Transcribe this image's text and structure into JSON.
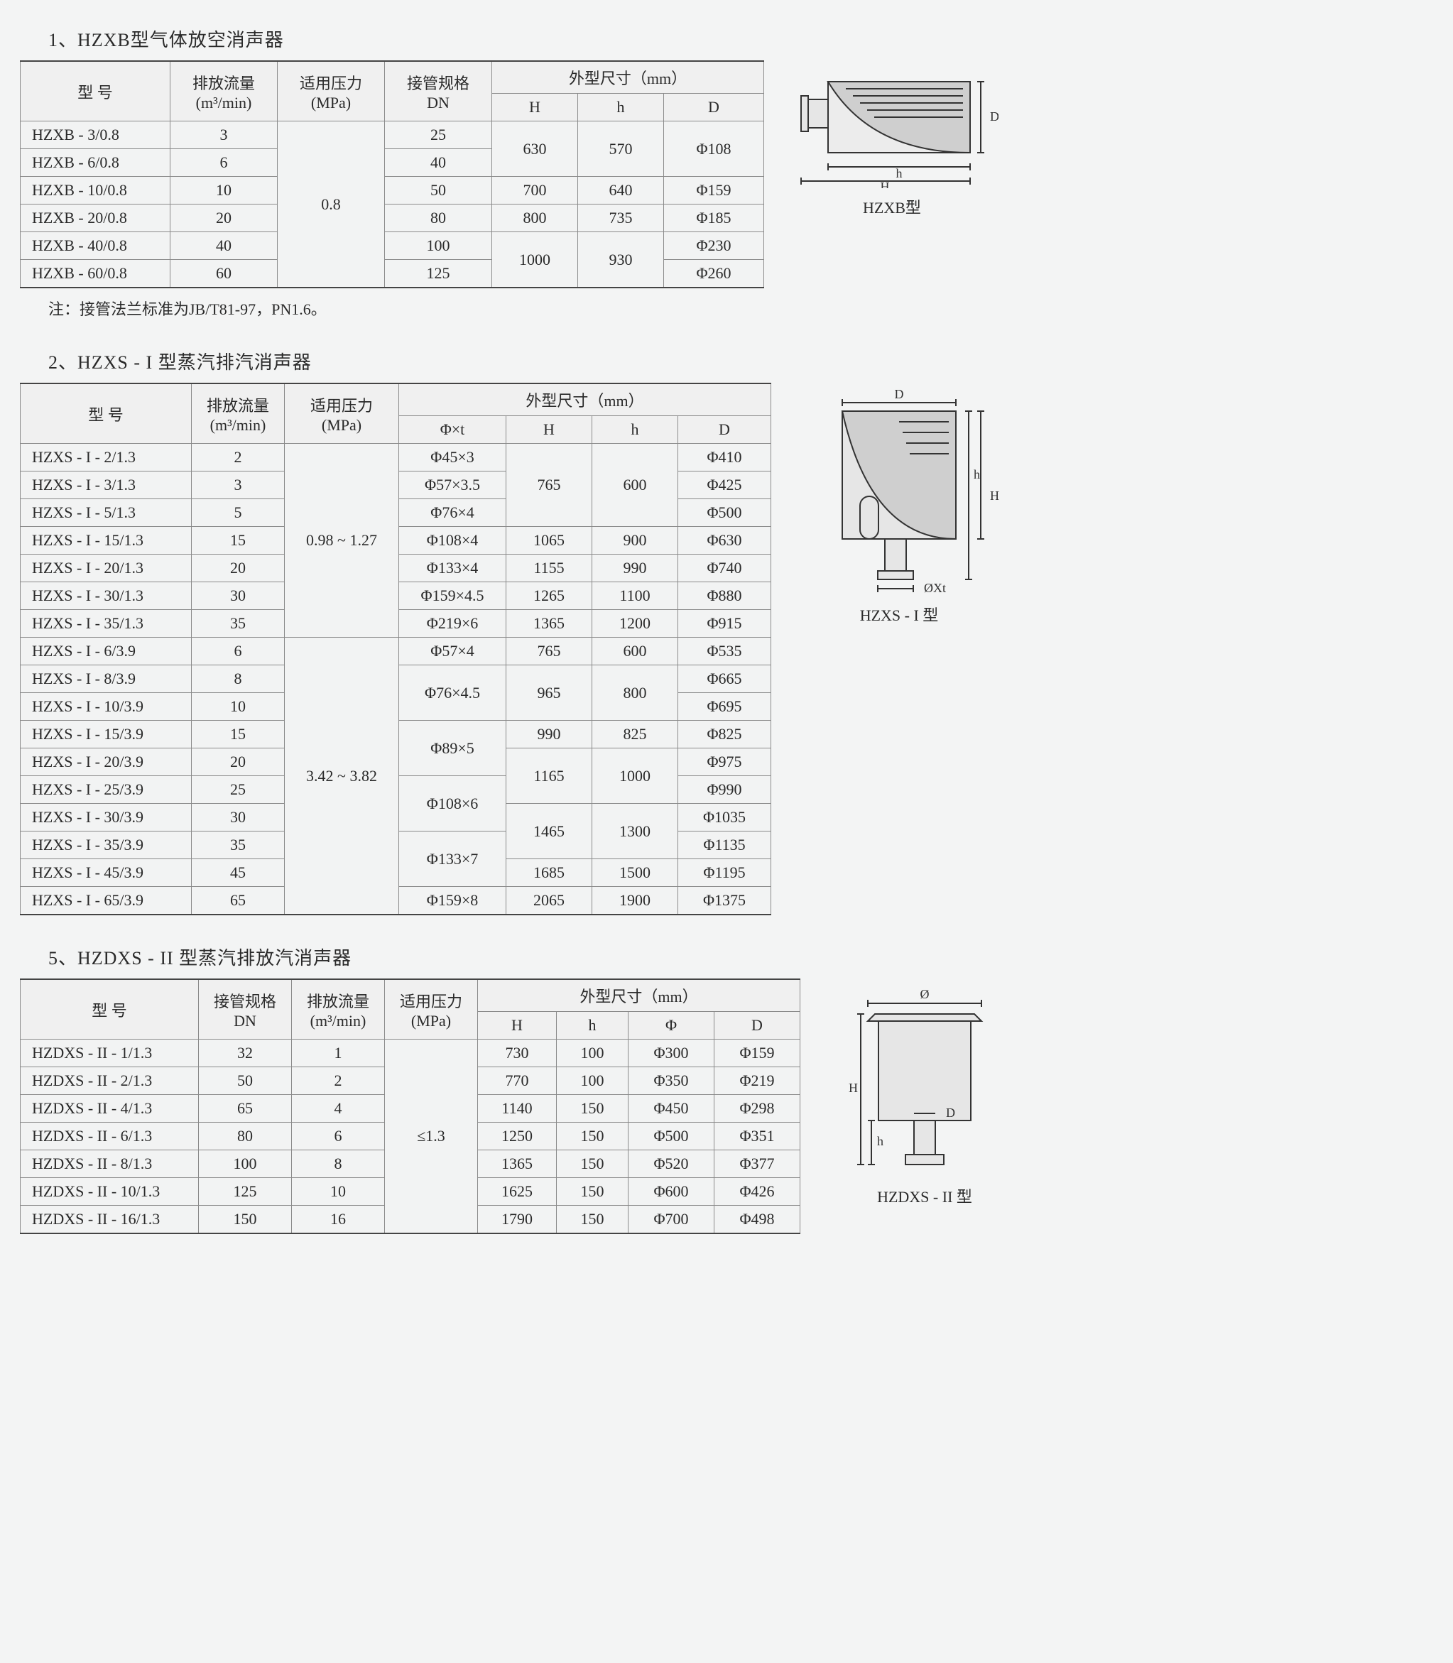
{
  "colors": {
    "page_bg": "#f3f4f4",
    "text": "#2a2a2a",
    "grid": "#8a8a8a",
    "table_border_heavy": "#444444",
    "diagram_stroke": "#333333",
    "diagram_fill": "#e6e6e6",
    "diagram_dark": "#cfcfcf"
  },
  "section1": {
    "title": "1、HZXB型气体放空消声器",
    "note": "注：接管法兰标准为JB/T81-97，PN1.6。",
    "diagram_label": "HZXB型",
    "diagram_dims": [
      "H",
      "h",
      "D"
    ],
    "columns": {
      "model": "型  号",
      "flow": "排放流量\n(m³/min)",
      "pressure": "适用压力\n(MPa)",
      "dn": "接管规格\nDN",
      "dims_group": "外型尺寸（mm）",
      "H": "H",
      "h": "h",
      "D": "D"
    },
    "pressure_common": "0.8",
    "rows": [
      {
        "model": "HZXB - 3/0.8",
        "flow": "3",
        "dn": "25",
        "H": "630",
        "h": "570",
        "D": "Φ108"
      },
      {
        "model": "HZXB - 6/0.8",
        "flow": "6",
        "dn": "40",
        "H": "",
        "h": "",
        "D": ""
      },
      {
        "model": "HZXB - 10/0.8",
        "flow": "10",
        "dn": "50",
        "H": "700",
        "h": "640",
        "D": "Φ159"
      },
      {
        "model": "HZXB - 20/0.8",
        "flow": "20",
        "dn": "80",
        "H": "800",
        "h": "735",
        "D": "Φ185"
      },
      {
        "model": "HZXB - 40/0.8",
        "flow": "40",
        "dn": "100",
        "H": "1000",
        "h": "930",
        "D": "Φ230"
      },
      {
        "model": "HZXB - 60/0.8",
        "flow": "60",
        "dn": "125",
        "H": "",
        "h": "",
        "D": "Φ260"
      }
    ],
    "H_spans": [
      2,
      0,
      1,
      1,
      2,
      0
    ],
    "h_spans": [
      2,
      0,
      1,
      1,
      2,
      0
    ]
  },
  "section2": {
    "title": "2、HZXS - I 型蒸汽排汽消声器",
    "diagram_label": "HZXS - I 型",
    "diagram_dims": [
      "H",
      "h",
      "D",
      "ØXt"
    ],
    "columns": {
      "model": "型  号",
      "flow": "排放流量\n(m³/min)",
      "pressure": "适用压力\n(MPa)",
      "dims_group": "外型尺寸（mm）",
      "phiXt": "Φ×t",
      "H": "H",
      "h": "h",
      "D": "D"
    },
    "pressure_groups": [
      {
        "value": "0.98 ~ 1.27",
        "span": 7
      },
      {
        "value": "3.42 ~ 3.82",
        "span": 10
      }
    ],
    "rows": [
      {
        "model": "HZXS - I - 2/1.3",
        "flow": "2",
        "phiXt": "Φ45×3",
        "H": "765",
        "h": "600",
        "D": "Φ410",
        "phi_span": 1,
        "H_span": 3,
        "h_span": 3
      },
      {
        "model": "HZXS - I - 3/1.3",
        "flow": "3",
        "phiXt": "Φ57×3.5",
        "H": "",
        "h": "",
        "D": "Φ425",
        "phi_span": 1,
        "H_span": 0,
        "h_span": 0
      },
      {
        "model": "HZXS - I - 5/1.3",
        "flow": "5",
        "phiXt": "Φ76×4",
        "H": "",
        "h": "",
        "D": "Φ500",
        "phi_span": 1,
        "H_span": 0,
        "h_span": 0
      },
      {
        "model": "HZXS - I - 15/1.3",
        "flow": "15",
        "phiXt": "Φ108×4",
        "H": "1065",
        "h": "900",
        "D": "Φ630",
        "phi_span": 1,
        "H_span": 1,
        "h_span": 1
      },
      {
        "model": "HZXS - I - 20/1.3",
        "flow": "20",
        "phiXt": "Φ133×4",
        "H": "1155",
        "h": "990",
        "D": "Φ740",
        "phi_span": 1,
        "H_span": 1,
        "h_span": 1
      },
      {
        "model": "HZXS - I - 30/1.3",
        "flow": "30",
        "phiXt": "Φ159×4.5",
        "H": "1265",
        "h": "1100",
        "D": "Φ880",
        "phi_span": 1,
        "H_span": 1,
        "h_span": 1
      },
      {
        "model": "HZXS - I - 35/1.3",
        "flow": "35",
        "phiXt": "Φ219×6",
        "H": "1365",
        "h": "1200",
        "D": "Φ915",
        "phi_span": 1,
        "H_span": 1,
        "h_span": 1
      },
      {
        "model": "HZXS - I - 6/3.9",
        "flow": "6",
        "phiXt": "Φ57×4",
        "H": "765",
        "h": "600",
        "D": "Φ535",
        "phi_span": 1,
        "H_span": 1,
        "h_span": 1
      },
      {
        "model": "HZXS - I - 8/3.9",
        "flow": "8",
        "phiXt": "Φ76×4.5",
        "H": "965",
        "h": "800",
        "D": "Φ665",
        "phi_span": 2,
        "H_span": 2,
        "h_span": 2
      },
      {
        "model": "HZXS - I - 10/3.9",
        "flow": "10",
        "phiXt": "",
        "H": "",
        "h": "",
        "D": "Φ695",
        "phi_span": 0,
        "H_span": 0,
        "h_span": 0
      },
      {
        "model": "HZXS - I - 15/3.9",
        "flow": "15",
        "phiXt": "Φ89×5",
        "H": "990",
        "h": "825",
        "D": "Φ825",
        "phi_span": 2,
        "H_span": 1,
        "h_span": 1
      },
      {
        "model": "HZXS - I - 20/3.9",
        "flow": "20",
        "phiXt": "",
        "H": "1165",
        "h": "1000",
        "D": "Φ975",
        "phi_span": 0,
        "H_span": 2,
        "h_span": 2
      },
      {
        "model": "HZXS - I - 25/3.9",
        "flow": "25",
        "phiXt": "Φ108×6",
        "H": "",
        "h": "",
        "D": "Φ990",
        "phi_span": 2,
        "H_span": 0,
        "h_span": 0
      },
      {
        "model": "HZXS - I - 30/3.9",
        "flow": "30",
        "phiXt": "",
        "H": "1465",
        "h": "1300",
        "D": "Φ1035",
        "phi_span": 0,
        "H_span": 2,
        "h_span": 2
      },
      {
        "model": "HZXS - I - 35/3.9",
        "flow": "35",
        "phiXt": "Φ133×7",
        "H": "",
        "h": "",
        "D": "Φ1135",
        "phi_span": 2,
        "H_span": 0,
        "h_span": 0
      },
      {
        "model": "HZXS - I - 45/3.9",
        "flow": "45",
        "phiXt": "",
        "H": "1685",
        "h": "1500",
        "D": "Φ1195",
        "phi_span": 0,
        "H_span": 1,
        "h_span": 1
      },
      {
        "model": "HZXS - I - 65/3.9",
        "flow": "65",
        "phiXt": "Φ159×8",
        "H": "2065",
        "h": "1900",
        "D": "Φ1375",
        "phi_span": 1,
        "H_span": 1,
        "h_span": 1
      }
    ]
  },
  "section5": {
    "title": "5、HZDXS - II 型蒸汽排放汽消声器",
    "diagram_label": "HZDXS - II 型",
    "diagram_dims": [
      "H",
      "h",
      "D",
      "Ø"
    ],
    "columns": {
      "model": "型  号",
      "dn": "接管规格\nDN",
      "flow": "排放流量\n(m³/min)",
      "pressure": "适用压力\n(MPa)",
      "dims_group": "外型尺寸（mm）",
      "H": "H",
      "h": "h",
      "Phi": "Φ",
      "D": "D"
    },
    "pressure_common": "≤1.3",
    "rows": [
      {
        "model": "HZDXS - II - 1/1.3",
        "dn": "32",
        "flow": "1",
        "H": "730",
        "h": "100",
        "Phi": "Φ300",
        "D": "Φ159"
      },
      {
        "model": "HZDXS - II - 2/1.3",
        "dn": "50",
        "flow": "2",
        "H": "770",
        "h": "100",
        "Phi": "Φ350",
        "D": "Φ219"
      },
      {
        "model": "HZDXS - II - 4/1.3",
        "dn": "65",
        "flow": "4",
        "H": "1140",
        "h": "150",
        "Phi": "Φ450",
        "D": "Φ298"
      },
      {
        "model": "HZDXS - II - 6/1.3",
        "dn": "80",
        "flow": "6",
        "H": "1250",
        "h": "150",
        "Phi": "Φ500",
        "D": "Φ351"
      },
      {
        "model": "HZDXS - II - 8/1.3",
        "dn": "100",
        "flow": "8",
        "H": "1365",
        "h": "150",
        "Phi": "Φ520",
        "D": "Φ377"
      },
      {
        "model": "HZDXS - II - 10/1.3",
        "dn": "125",
        "flow": "10",
        "H": "1625",
        "h": "150",
        "Phi": "Φ600",
        "D": "Φ426"
      },
      {
        "model": "HZDXS - II - 16/1.3",
        "dn": "150",
        "flow": "16",
        "H": "1790",
        "h": "150",
        "Phi": "Φ700",
        "D": "Φ498"
      }
    ]
  }
}
